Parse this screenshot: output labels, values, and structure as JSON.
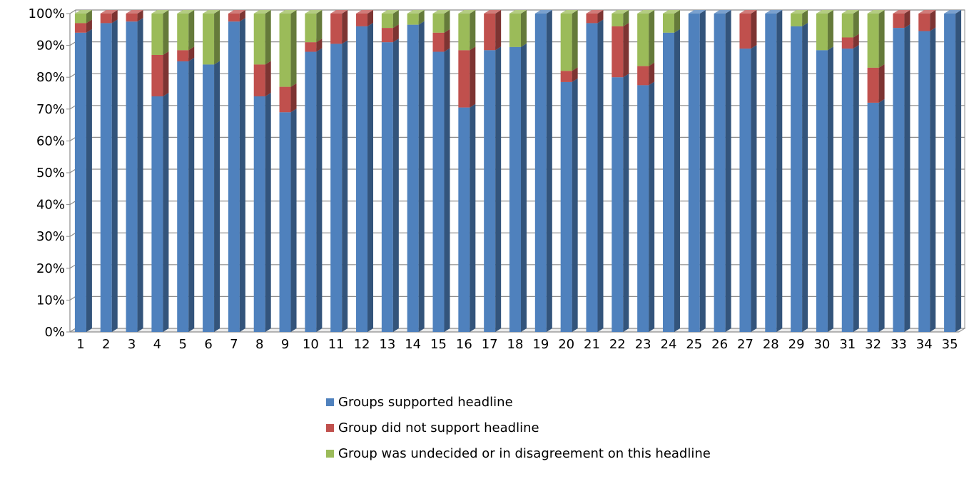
{
  "chart_data": {
    "type": "bar",
    "stacked": true,
    "percent_stacked": true,
    "categories": [
      "1",
      "2",
      "3",
      "4",
      "5",
      "6",
      "7",
      "8",
      "9",
      "10",
      "11",
      "12",
      "13",
      "14",
      "15",
      "16",
      "17",
      "18",
      "19",
      "20",
      "21",
      "22",
      "23",
      "24",
      "25",
      "26",
      "27",
      "28",
      "29",
      "30",
      "31",
      "32",
      "33",
      "34",
      "35"
    ],
    "series": [
      {
        "name": "Groups supported headline",
        "color": "#4F81BD",
        "values": [
          94,
          97,
          97.5,
          74,
          85,
          84,
          97.5,
          74,
          69,
          88,
          90.5,
          96,
          91,
          96.5,
          88,
          70.5,
          88.5,
          89.5,
          100,
          78.5,
          97,
          80,
          77.5,
          94,
          100,
          100,
          89,
          100,
          96,
          88.5,
          89,
          72,
          95.5,
          94.5,
          100
        ]
      },
      {
        "name": "Group did not support headline",
        "color": "#C0504D",
        "values": [
          3,
          3,
          2.5,
          13,
          3.5,
          0,
          2.5,
          10,
          8,
          3,
          9.5,
          4,
          4.5,
          0,
          6,
          18,
          11.5,
          0,
          0,
          3.5,
          3,
          16,
          6,
          0,
          0,
          0,
          11,
          0,
          0,
          0,
          3.5,
          11,
          4.5,
          5.5,
          0
        ]
      },
      {
        "name": "Group was undecided or in disagreement on this headline",
        "color": "#9BBB59",
        "values": [
          3,
          0,
          0,
          13,
          11.5,
          16,
          0,
          16,
          23,
          9,
          0,
          0,
          4.5,
          3.5,
          6,
          11.5,
          0,
          10.5,
          0,
          18,
          0,
          4,
          16.5,
          6,
          0,
          0,
          0,
          0,
          4,
          11.5,
          7.5,
          17,
          0,
          0,
          0
        ]
      }
    ],
    "y_ticks": [
      "0%",
      "10%",
      "20%",
      "30%",
      "40%",
      "50%",
      "60%",
      "70%",
      "80%",
      "90%",
      "100%"
    ],
    "ylim": [
      0,
      100
    ],
    "grid": true,
    "legend_position": "bottom",
    "title": "",
    "xlabel": "",
    "ylabel": ""
  }
}
